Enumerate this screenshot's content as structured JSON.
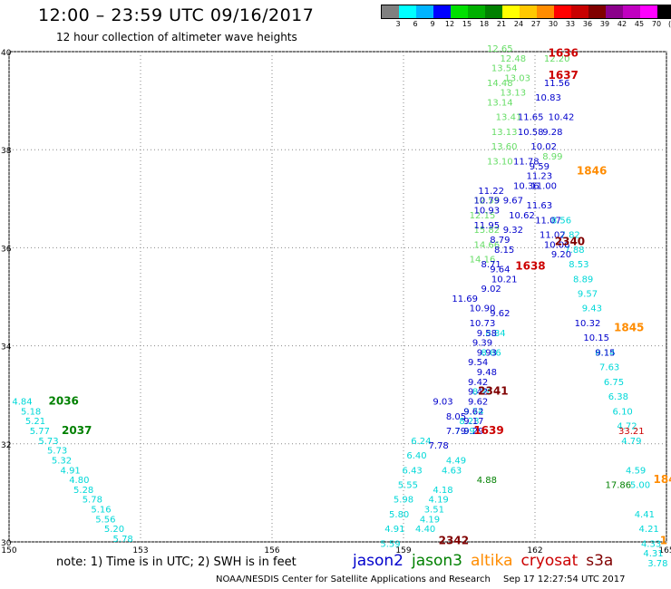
{
  "header": {
    "title": "12:00 – 23:59 UTC 09/16/2017",
    "subtitle": "12 hour collection of altimeter wave heights"
  },
  "legend": {
    "colors": [
      "#808080",
      "#00ffff",
      "#00b4ff",
      "#0000ff",
      "#00e000",
      "#00b000",
      "#008000",
      "#ffff00",
      "#ffc800",
      "#ff8c00",
      "#ff0000",
      "#c80000",
      "#800000",
      "#8b008b",
      "#c000c0",
      "#ff00ff",
      "#000000"
    ],
    "ticks": [
      "3",
      "6",
      "9",
      "12",
      "15",
      "18",
      "21",
      "24",
      "27",
      "30",
      "33",
      "36",
      "39",
      "42",
      "45",
      "70",
      "(ft)"
    ]
  },
  "footer": {
    "note": "note: 1) Time is in UTC; 2) SWH is in feet",
    "satellites": [
      {
        "name": "jason2",
        "color": "#0000cc"
      },
      {
        "name": "jason3",
        "color": "#008000"
      },
      {
        "name": "altika",
        "color": "#ff8c00"
      },
      {
        "name": "cryosat",
        "color": "#cc0000"
      },
      {
        "name": "s3a",
        "color": "#800000"
      }
    ],
    "credit": "NOAA/NESDIS Center for Satellite Applications and Research",
    "timestamp": "Sep 17 12:27:54 UTC 2017"
  },
  "chart_data": {
    "type": "scatter",
    "xlim": [
      150,
      165
    ],
    "ylim": [
      30,
      40
    ],
    "x_ticks": [
      "150",
      "153",
      "156",
      "159",
      "162",
      "165"
    ],
    "y_ticks": [
      "30",
      "32",
      "34",
      "36",
      "38",
      "40"
    ],
    "grid": true,
    "times": [
      {
        "label": "1636",
        "x": 162.3,
        "y": 39.9,
        "color": "#cc0000"
      },
      {
        "label": "1637",
        "x": 162.3,
        "y": 39.45,
        "color": "#cc0000"
      },
      {
        "label": "1846",
        "x": 162.95,
        "y": 37.5,
        "color": "#ff8c00"
      },
      {
        "label": "2340",
        "x": 162.45,
        "y": 36.05,
        "color": "#800000"
      },
      {
        "label": "1638",
        "x": 161.55,
        "y": 35.55,
        "color": "#cc0000"
      },
      {
        "label": "1845",
        "x": 163.8,
        "y": 34.3,
        "color": "#ff8c00"
      },
      {
        "label": "2341",
        "x": 160.7,
        "y": 33.0,
        "color": "#800000"
      },
      {
        "label": "2036",
        "x": 150.9,
        "y": 32.8,
        "color": "#008000"
      },
      {
        "label": "2037",
        "x": 151.2,
        "y": 32.2,
        "color": "#008000"
      },
      {
        "label": "1639",
        "x": 160.6,
        "y": 32.2,
        "color": "#cc0000"
      },
      {
        "label": "2342",
        "x": 159.8,
        "y": 29.95,
        "color": "#800000"
      },
      {
        "label": "184",
        "x": 164.7,
        "y": 31.2,
        "color": "#ff8c00"
      },
      {
        "label": "1",
        "x": 164.85,
        "y": 29.95,
        "color": "#ff8c00"
      }
    ],
    "series": [
      {
        "color": "#00d8d8",
        "points": [
          [
            150.3,
            32.8,
            "4.84"
          ],
          [
            150.5,
            32.6,
            "5.18"
          ],
          [
            150.6,
            32.4,
            "5.21"
          ],
          [
            150.7,
            32.2,
            "5.77"
          ],
          [
            150.9,
            32.0,
            "5.73"
          ],
          [
            151.1,
            31.8,
            "5.73"
          ],
          [
            151.2,
            31.6,
            "5.32"
          ],
          [
            151.4,
            31.4,
            "4.91"
          ],
          [
            151.6,
            31.2,
            "4.80"
          ],
          [
            151.7,
            31.0,
            "5.28"
          ],
          [
            151.9,
            30.8,
            "5.78"
          ],
          [
            152.1,
            30.6,
            "5.16"
          ],
          [
            152.2,
            30.4,
            "5.56"
          ],
          [
            152.4,
            30.2,
            "5.20"
          ],
          [
            152.6,
            30.0,
            "5.78"
          ],
          [
            161.1,
            34.2,
            "8.84"
          ],
          [
            161.0,
            33.8,
            "8.86"
          ],
          [
            160.8,
            33.0,
            "8.26"
          ],
          [
            160.6,
            32.6,
            "9.74"
          ],
          [
            160.5,
            32.4,
            "8.23"
          ],
          [
            160.4,
            32.2,
            "7.99"
          ],
          [
            160.2,
            31.6,
            "4.49"
          ],
          [
            160.1,
            31.4,
            "4.63"
          ],
          [
            159.9,
            31.0,
            "4.18"
          ],
          [
            159.8,
            30.8,
            "4.19"
          ],
          [
            159.7,
            30.6,
            "3.51"
          ],
          [
            159.6,
            30.4,
            "4.19"
          ],
          [
            159.5,
            30.2,
            "4.40"
          ],
          [
            159.4,
            32.0,
            "6.24"
          ],
          [
            159.3,
            31.7,
            "6.40"
          ],
          [
            159.2,
            31.4,
            "6.43"
          ],
          [
            159.1,
            31.1,
            "5.55"
          ],
          [
            159.0,
            30.8,
            "5.98"
          ],
          [
            158.9,
            30.5,
            "5.80"
          ],
          [
            158.8,
            30.2,
            "4.91"
          ],
          [
            158.7,
            29.9,
            "5.59"
          ],
          [
            162.6,
            36.5,
            "8.56"
          ],
          [
            162.8,
            36.2,
            "7.82"
          ],
          [
            162.9,
            35.9,
            "7.88"
          ],
          [
            163.0,
            35.6,
            "8.53"
          ],
          [
            163.1,
            35.3,
            "8.89"
          ],
          [
            163.2,
            35.0,
            "9.57"
          ],
          [
            163.3,
            34.7,
            "9.43"
          ],
          [
            163.6,
            33.8,
            "8.14"
          ],
          [
            163.7,
            33.5,
            "7.63"
          ],
          [
            163.8,
            33.2,
            "6.75"
          ],
          [
            163.9,
            32.9,
            "6.38"
          ],
          [
            164.0,
            32.6,
            "6.10"
          ],
          [
            164.1,
            32.3,
            "4.72"
          ],
          [
            164.2,
            32.0,
            "4.79"
          ],
          [
            164.3,
            31.4,
            "4.59"
          ],
          [
            164.4,
            31.1,
            "5.00"
          ],
          [
            164.5,
            30.5,
            "4.41"
          ],
          [
            164.6,
            30.2,
            "4.21"
          ],
          [
            164.65,
            29.9,
            "4.33"
          ],
          [
            164.7,
            29.7,
            "4.31"
          ],
          [
            164.8,
            29.5,
            "3.78"
          ]
        ]
      },
      {
        "color": "#66dd66",
        "points": [
          [
            161.2,
            40.0,
            "12.65"
          ],
          [
            161.5,
            39.8,
            "12.48"
          ],
          [
            162.5,
            39.8,
            "12.20"
          ],
          [
            161.3,
            39.6,
            "13.54"
          ],
          [
            161.6,
            39.4,
            "13.03"
          ],
          [
            161.2,
            39.3,
            "14.48"
          ],
          [
            161.5,
            39.1,
            "13.13"
          ],
          [
            161.2,
            38.9,
            "13.14"
          ],
          [
            161.4,
            38.6,
            "13.41"
          ],
          [
            161.3,
            38.3,
            "13.13"
          ],
          [
            161.3,
            38.0,
            "13.60"
          ],
          [
            161.2,
            37.7,
            "13.10"
          ],
          [
            160.9,
            36.9,
            "12.55"
          ],
          [
            160.8,
            36.6,
            "12.15"
          ],
          [
            160.9,
            36.3,
            "15.82"
          ],
          [
            160.9,
            36.0,
            "14.66"
          ],
          [
            160.8,
            35.7,
            "14.16"
          ],
          [
            162.4,
            37.8,
            "8.99"
          ]
        ]
      },
      {
        "color": "#0000cc",
        "points": [
          [
            162.5,
            39.3,
            "11.56"
          ],
          [
            162.3,
            39.0,
            "10.83"
          ],
          [
            161.9,
            38.6,
            "11.65"
          ],
          [
            162.6,
            38.6,
            "10.42"
          ],
          [
            161.9,
            38.3,
            "10.58"
          ],
          [
            162.4,
            38.3,
            "9.28"
          ],
          [
            162.2,
            38.0,
            "10.02"
          ],
          [
            161.8,
            37.7,
            "11.78"
          ],
          [
            162.1,
            37.6,
            "9.59"
          ],
          [
            162.1,
            37.4,
            "11.23"
          ],
          [
            161.8,
            37.2,
            "10.36"
          ],
          [
            162.2,
            37.2,
            "11.00"
          ],
          [
            161.0,
            37.1,
            "11.22"
          ],
          [
            160.9,
            36.9,
            "10.79"
          ],
          [
            161.5,
            36.9,
            "9.67"
          ],
          [
            162.1,
            36.8,
            "11.63"
          ],
          [
            160.9,
            36.7,
            "10.93"
          ],
          [
            161.7,
            36.6,
            "10.62"
          ],
          [
            162.3,
            36.5,
            "11.07"
          ],
          [
            160.9,
            36.4,
            "11.95"
          ],
          [
            161.5,
            36.3,
            "9.32"
          ],
          [
            162.4,
            36.2,
            "11.02"
          ],
          [
            161.2,
            36.1,
            "8.79"
          ],
          [
            162.5,
            36.0,
            "10.06"
          ],
          [
            161.3,
            35.9,
            "8.15"
          ],
          [
            162.6,
            35.8,
            "9.20"
          ],
          [
            161.0,
            35.6,
            "8.71"
          ],
          [
            161.2,
            35.5,
            "9.64"
          ],
          [
            161.3,
            35.3,
            "10.21"
          ],
          [
            161.0,
            35.1,
            "9.02"
          ],
          [
            160.4,
            34.9,
            "11.69"
          ],
          [
            160.8,
            34.7,
            "10.90"
          ],
          [
            161.2,
            34.6,
            "9.62"
          ],
          [
            160.8,
            34.4,
            "10.73"
          ],
          [
            160.9,
            34.2,
            "9.58"
          ],
          [
            160.8,
            34.0,
            "9.39"
          ],
          [
            160.9,
            33.8,
            "9.93"
          ],
          [
            160.7,
            33.6,
            "9.54"
          ],
          [
            160.9,
            33.4,
            "9.48"
          ],
          [
            160.7,
            33.2,
            "9.42"
          ],
          [
            160.7,
            33.0,
            "9.42"
          ],
          [
            160.7,
            32.8,
            "9.62"
          ],
          [
            160.6,
            32.6,
            "9.62"
          ],
          [
            160.6,
            32.4,
            "9.17"
          ],
          [
            160.6,
            32.2,
            "9.29"
          ],
          [
            159.9,
            32.8,
            "9.03"
          ],
          [
            160.2,
            32.5,
            "8.05"
          ],
          [
            160.2,
            32.2,
            "7.79"
          ],
          [
            159.8,
            31.9,
            "7.78"
          ],
          [
            163.2,
            34.4,
            "10.32"
          ],
          [
            163.4,
            34.1,
            "10.15"
          ],
          [
            163.6,
            33.8,
            "9.15"
          ]
        ]
      },
      {
        "color": "#cc0000",
        "points": [
          [
            164.2,
            32.2,
            "33.21"
          ]
        ]
      },
      {
        "color": "#008000",
        "points": [
          [
            163.9,
            31.1,
            "17.86"
          ],
          [
            160.9,
            31.2,
            "4.88"
          ]
        ]
      },
      {
        "color": "#ff8c00",
        "points": []
      }
    ]
  }
}
